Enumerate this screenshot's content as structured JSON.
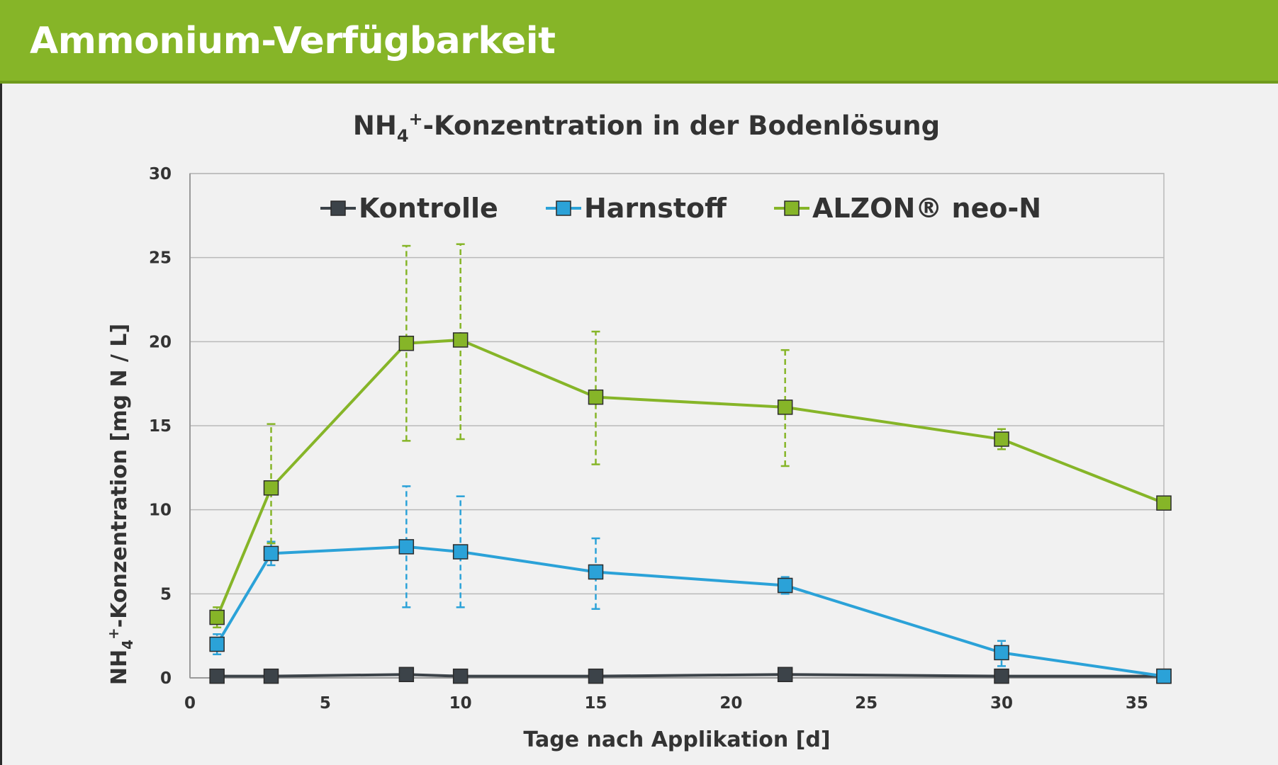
{
  "header": {
    "title": "Ammonium-Verfügbarkeit"
  },
  "chart_data": {
    "type": "line",
    "title": {
      "main": "NH",
      "sub": "4",
      "sup": "+",
      "rest": "-Konzentration in der Bodenlösung"
    },
    "xlabel": "Tage nach Applikation  [d]",
    "ylabel": {
      "main": "NH",
      "sub": "4",
      "sup": "+",
      "rest": "-Konzentration  [mg N / L]"
    },
    "xlim": [
      0,
      36
    ],
    "ylim": [
      0,
      30
    ],
    "xticks": [
      "0",
      "5",
      "10",
      "15",
      "20",
      "25",
      "30",
      "35"
    ],
    "yticks": [
      "0",
      "5",
      "10",
      "15",
      "20",
      "25",
      "30"
    ],
    "grid": true,
    "legend_position": "top",
    "series": [
      {
        "name": "Kontrolle",
        "color": "#3c4349",
        "x": [
          1,
          3,
          8,
          10,
          15,
          22,
          30,
          36
        ],
        "y": [
          0.1,
          0.1,
          0.2,
          0.1,
          0.1,
          0.2,
          0.1,
          0.1
        ],
        "err_low": [],
        "err_high": []
      },
      {
        "name": "Harnstoff",
        "color": "#2ba2d8",
        "x": [
          1,
          3,
          8,
          10,
          15,
          22,
          30,
          36
        ],
        "y": [
          2.0,
          7.4,
          7.8,
          7.5,
          6.3,
          5.5,
          1.5,
          0.1
        ],
        "err_low": [
          1.4,
          6.7,
          4.2,
          4.2,
          4.1,
          5.0,
          0.7,
          null
        ],
        "err_high": [
          2.6,
          8.1,
          11.4,
          10.8,
          8.3,
          6.0,
          2.2,
          null
        ]
      },
      {
        "name": "ALZON® neo-N",
        "color": "#86b528",
        "x": [
          1,
          3,
          8,
          10,
          15,
          22,
          30,
          36
        ],
        "y": [
          3.6,
          11.3,
          19.9,
          20.1,
          16.7,
          16.1,
          14.2,
          10.4
        ],
        "err_low": [
          3.0,
          8.0,
          14.1,
          14.2,
          12.7,
          12.6,
          13.6,
          null
        ],
        "err_high": [
          4.2,
          15.1,
          25.7,
          25.8,
          20.6,
          19.5,
          14.8,
          null
        ]
      }
    ]
  }
}
